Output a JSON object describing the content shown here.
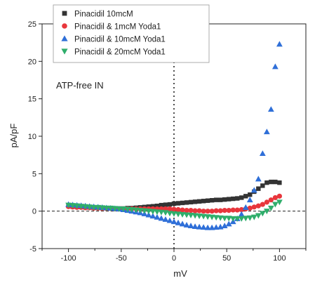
{
  "chart_data": {
    "type": "scatter",
    "xlabel": "mV",
    "ylabel": "pA/pF",
    "xlim": [
      -125,
      125
    ],
    "ylim": [
      -5,
      25
    ],
    "xticks": [
      -100,
      -50,
      0,
      50,
      100
    ],
    "yticks": [
      -5,
      0,
      5,
      10,
      15,
      20,
      25
    ],
    "x_tick_labels": [
      "-100",
      "-50",
      "0",
      "50",
      "100"
    ],
    "y_tick_labels": [
      "-5",
      "0",
      "5",
      "10",
      "15",
      "20",
      "25"
    ],
    "grid": false,
    "legend_position": "top-left",
    "annotation": "ATP-free IN",
    "reference_lines": {
      "x_zero": "dotted",
      "y_zero": "dashed"
    },
    "series": [
      {
        "name": "Pinacidil 10mcM",
        "marker": "square",
        "color": "#333333",
        "x": [
          -100,
          -96,
          -92,
          -88,
          -84,
          -80,
          -76,
          -72,
          -68,
          -64,
          -60,
          -56,
          -52,
          -48,
          -44,
          -40,
          -36,
          -32,
          -28,
          -24,
          -20,
          -16,
          -12,
          -8,
          -4,
          0,
          4,
          8,
          12,
          16,
          20,
          24,
          28,
          32,
          36,
          40,
          44,
          48,
          52,
          56,
          60,
          64,
          68,
          72,
          76,
          80,
          84,
          88,
          92,
          96,
          100
        ],
        "y": [
          0.7,
          0.6,
          0.6,
          0.55,
          0.5,
          0.5,
          0.45,
          0.45,
          0.4,
          0.4,
          0.4,
          0.35,
          0.35,
          0.35,
          0.4,
          0.4,
          0.45,
          0.5,
          0.55,
          0.6,
          0.65,
          0.7,
          0.8,
          0.85,
          0.9,
          1.0,
          1.05,
          1.1,
          1.15,
          1.2,
          1.25,
          1.3,
          1.35,
          1.4,
          1.45,
          1.5,
          1.5,
          1.55,
          1.6,
          1.65,
          1.7,
          1.8,
          2.0,
          2.2,
          2.6,
          3.0,
          3.4,
          3.8,
          3.9,
          3.9,
          3.8
        ]
      },
      {
        "name": "Pinacidil & 1mcM Yoda1",
        "marker": "circle",
        "color": "#e8363c",
        "x": [
          -100,
          -96,
          -92,
          -88,
          -84,
          -80,
          -76,
          -72,
          -68,
          -64,
          -60,
          -56,
          -52,
          -48,
          -44,
          -40,
          -36,
          -32,
          -28,
          -24,
          -20,
          -16,
          -12,
          -8,
          -4,
          0,
          4,
          8,
          12,
          16,
          20,
          24,
          28,
          32,
          36,
          40,
          44,
          48,
          52,
          56,
          60,
          64,
          68,
          72,
          76,
          80,
          84,
          88,
          92,
          96,
          100
        ],
        "y": [
          0.6,
          0.55,
          0.5,
          0.5,
          0.45,
          0.45,
          0.4,
          0.4,
          0.35,
          0.35,
          0.35,
          0.3,
          0.3,
          0.3,
          0.3,
          0.3,
          0.3,
          0.3,
          0.3,
          0.3,
          0.3,
          0.3,
          0.3,
          0.3,
          0.3,
          0.25,
          0.2,
          0.15,
          0.1,
          0.1,
          0.05,
          0.05,
          0.0,
          0.0,
          0.0,
          0.05,
          0.05,
          0.1,
          0.1,
          0.15,
          0.15,
          0.2,
          0.3,
          0.4,
          0.55,
          0.7,
          0.9,
          1.2,
          1.5,
          1.8,
          2.0
        ]
      },
      {
        "name": "Pinacidil &  10mcM Yoda1",
        "marker": "triangle-up",
        "color": "#2f6fd8",
        "x": [
          -100,
          -96,
          -92,
          -88,
          -84,
          -80,
          -76,
          -72,
          -68,
          -64,
          -60,
          -56,
          -52,
          -48,
          -44,
          -40,
          -36,
          -32,
          -28,
          -24,
          -20,
          -16,
          -12,
          -8,
          -4,
          0,
          4,
          8,
          12,
          16,
          20,
          24,
          28,
          32,
          36,
          40,
          44,
          48,
          52,
          56,
          60,
          64,
          68,
          72,
          76,
          80,
          84,
          88,
          92,
          96,
          100
        ],
        "y": [
          0.9,
          0.85,
          0.8,
          0.75,
          0.7,
          0.65,
          0.6,
          0.55,
          0.5,
          0.45,
          0.4,
          0.35,
          0.3,
          0.2,
          0.1,
          0.0,
          -0.1,
          -0.2,
          -0.35,
          -0.5,
          -0.65,
          -0.8,
          -0.95,
          -1.1,
          -1.25,
          -1.4,
          -1.55,
          -1.7,
          -1.85,
          -1.95,
          -2.05,
          -2.1,
          -2.15,
          -2.2,
          -2.2,
          -2.15,
          -2.1,
          -1.95,
          -1.7,
          -1.4,
          -1.0,
          -0.4,
          0.5,
          1.5,
          2.8,
          4.3,
          7.7,
          10.6,
          13.6,
          19.3,
          22.3
        ]
      },
      {
        "name": "Pinacidil &  20mcM Yoda1",
        "marker": "triangle-down",
        "color": "#2fae6b",
        "x": [
          -100,
          -96,
          -92,
          -88,
          -84,
          -80,
          -76,
          -72,
          -68,
          -64,
          -60,
          -56,
          -52,
          -48,
          -44,
          -40,
          -36,
          -32,
          -28,
          -24,
          -20,
          -16,
          -12,
          -8,
          -4,
          0,
          4,
          8,
          12,
          16,
          20,
          24,
          28,
          32,
          36,
          40,
          44,
          48,
          52,
          56,
          60,
          64,
          68,
          72,
          76,
          80,
          84,
          88,
          92,
          96,
          100
        ],
        "y": [
          0.8,
          0.75,
          0.7,
          0.65,
          0.6,
          0.55,
          0.5,
          0.5,
          0.45,
          0.4,
          0.4,
          0.35,
          0.3,
          0.3,
          0.25,
          0.2,
          0.15,
          0.1,
          0.05,
          0.0,
          -0.05,
          -0.1,
          -0.15,
          -0.2,
          -0.3,
          -0.35,
          -0.4,
          -0.45,
          -0.5,
          -0.55,
          -0.6,
          -0.65,
          -0.7,
          -0.75,
          -0.8,
          -0.85,
          -0.9,
          -0.95,
          -0.95,
          -1.0,
          -1.0,
          -1.0,
          -0.95,
          -0.9,
          -0.8,
          -0.6,
          -0.3,
          0.0,
          0.4,
          0.9,
          1.2
        ]
      }
    ]
  }
}
